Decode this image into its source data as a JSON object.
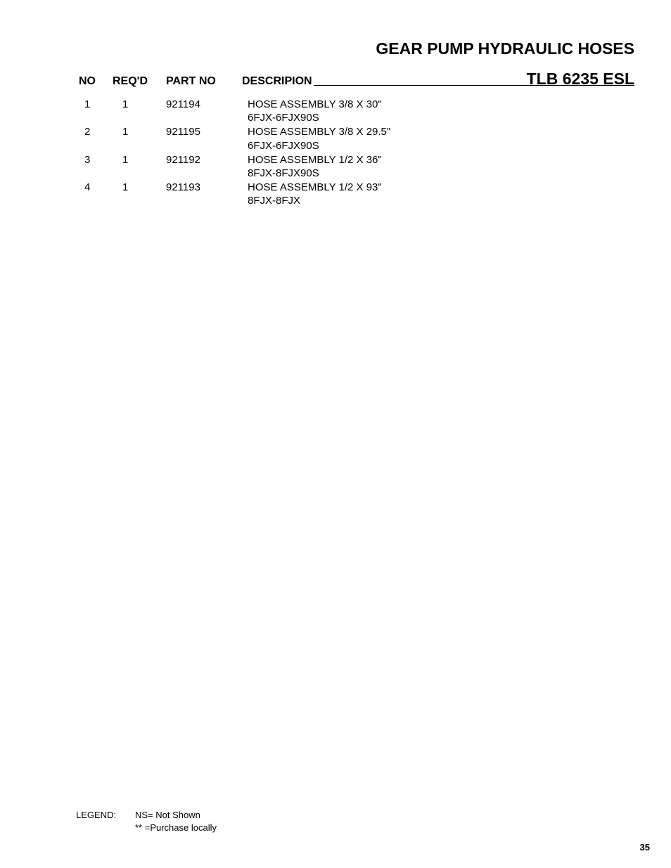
{
  "title": "GEAR PUMP HYDRAULIC HOSES",
  "model": "TLB 6235 ESL",
  "columns": {
    "no": "NO",
    "reqd": "REQ'D",
    "partno": "PART NO",
    "description": "DESCRIPION"
  },
  "rows": [
    {
      "no": "1",
      "reqd": "1",
      "partno": "921194",
      "desc_line1": "HOSE ASSEMBLY 3/8 X 30\"",
      "desc_line2": "6FJX-6FJX90S"
    },
    {
      "no": "2",
      "reqd": "1",
      "partno": "921195",
      "desc_line1": "HOSE ASSEMBLY 3/8 X 29.5\"",
      "desc_line2": "6FJX-6FJX90S"
    },
    {
      "no": "3",
      "reqd": "1",
      "partno": "921192",
      "desc_line1": "HOSE ASSEMBLY 1/2 X 36\"",
      "desc_line2": "8FJX-8FJX90S"
    },
    {
      "no": "4",
      "reqd": "1",
      "partno": "921193",
      "desc_line1": "HOSE ASSEMBLY 1/2 X 93\"",
      "desc_line2": "8FJX-8FJX"
    }
  ],
  "legend": {
    "label": "LEGEND:",
    "line1": "NS= Not Shown",
    "line2": "** =Purchase locally"
  },
  "page_number": "35"
}
